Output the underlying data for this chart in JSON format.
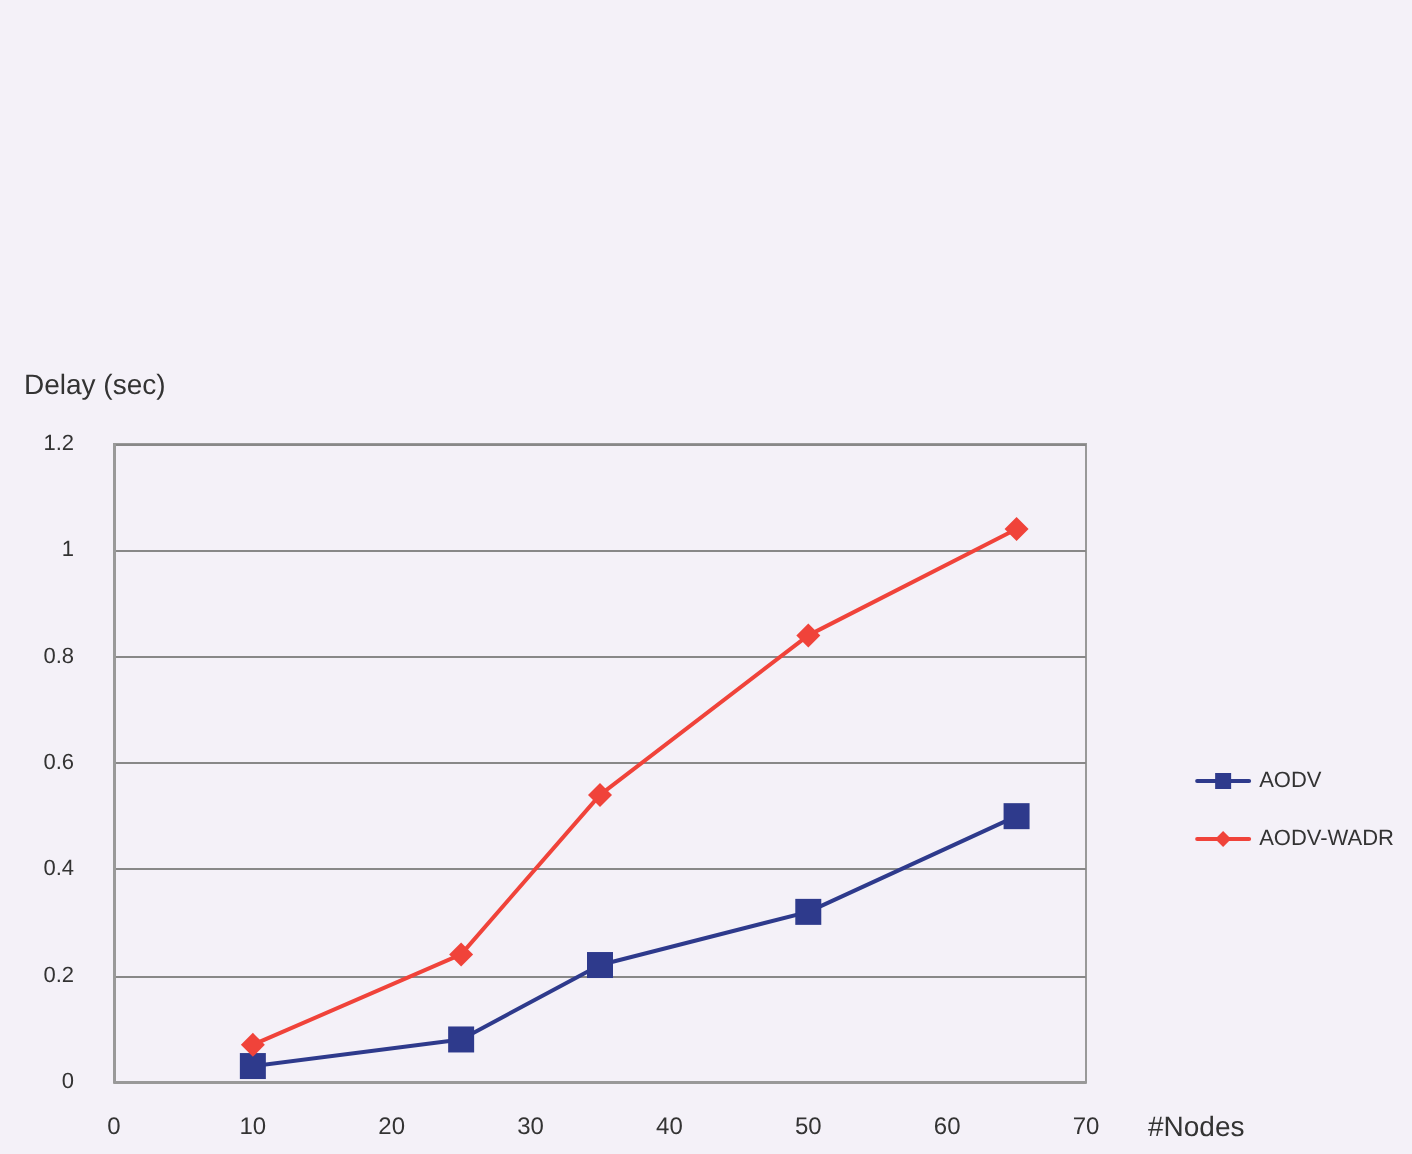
{
  "chart_data": {
    "type": "line",
    "xlabel": "#Nodes",
    "ylabel": "Delay (sec)",
    "x": [
      10,
      25,
      35,
      50,
      65
    ],
    "series": [
      {
        "name": "AODV",
        "color": "#2e3a8c",
        "marker": "square",
        "values": [
          0.03,
          0.08,
          0.22,
          0.32,
          0.5
        ]
      },
      {
        "name": "AODV-WADR",
        "color": "#f0433a",
        "marker": "diamond",
        "values": [
          0.07,
          0.24,
          0.54,
          0.84,
          1.04
        ]
      }
    ],
    "xlim": [
      0,
      70
    ],
    "xticks": [
      0,
      10,
      20,
      30,
      40,
      50,
      60,
      70
    ],
    "ylim": [
      0,
      1.2
    ],
    "yticks": [
      0,
      0.2,
      0.4,
      0.6,
      0.8,
      1,
      1.2
    ],
    "grid": "y",
    "legend": "right",
    "line_style": "solid"
  }
}
